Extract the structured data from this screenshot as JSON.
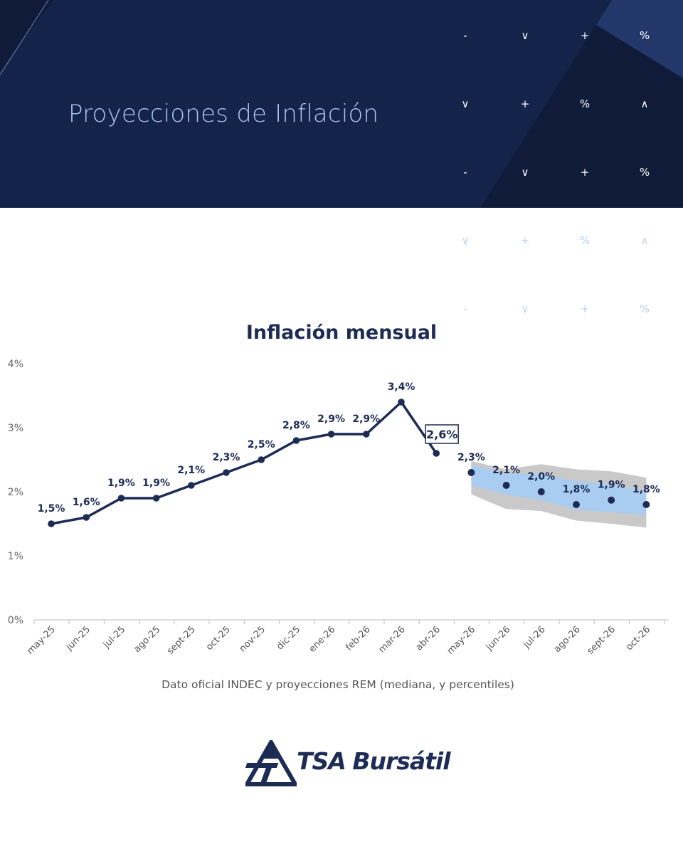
{
  "header": {
    "title": "Proyecciones de Inflación",
    "symbols": [
      [
        "-",
        "∨",
        "+",
        "%"
      ],
      [
        "∨",
        "+",
        "%",
        "∧"
      ],
      [
        "-",
        "∨",
        "+",
        "%"
      ],
      [
        "∨",
        "+",
        "%",
        "∧"
      ],
      [
        "-",
        "∨",
        "+",
        "%"
      ]
    ]
  },
  "chart_data": {
    "type": "line",
    "title": "Inflación mensual",
    "xlabel": "Dato oficial INDEC y proyecciones REM (mediana, y percentiles)",
    "ylabel": "",
    "ylim": [
      0,
      4
    ],
    "yticks": [
      "0%",
      "1%",
      "2%",
      "3%",
      "4%"
    ],
    "grid": false,
    "categories": [
      "may-25",
      "jun-25",
      "jul-25",
      "ago-25",
      "sept-25",
      "oct-25",
      "nov-25",
      "dic-25",
      "ene-26",
      "feb-26",
      "mar-26",
      "abr-26",
      "may-26",
      "jun-26",
      "jul-26",
      "ago-26",
      "sept-26",
      "oct-26"
    ],
    "series": [
      {
        "values": [
          1.5,
          1.6,
          1.9,
          1.9,
          2.1,
          2.3,
          2.5,
          2.8,
          2.9,
          2.9,
          3.4,
          2.6,
          null,
          null,
          null,
          null,
          null,
          null
        ],
        "labels": [
          "1,5%",
          "1,6%",
          "1,9%",
          "1,9%",
          "2,1%",
          "2,3%",
          "2,5%",
          "2,8%",
          "2,9%",
          "2,9%",
          "3,4%",
          "2,6%",
          "",
          "",
          "",
          "",
          "",
          ""
        ]
      },
      {
        "values": [
          null,
          null,
          null,
          null,
          null,
          null,
          null,
          null,
          null,
          null,
          null,
          null,
          2.3,
          2.1,
          2.0,
          1.8,
          1.87,
          1.8
        ],
        "labels": [
          "",
          "",
          "",
          "",
          "",
          "",
          "",
          "",
          "",
          "",
          "",
          "",
          "2,3%",
          "2,1%",
          "2,0%",
          "1,8%",
          "1,9%",
          "1,8%"
        ]
      }
    ],
    "band_inner": {
      "lower": [
        2.1,
        1.96,
        1.87,
        1.72,
        1.68,
        1.64
      ],
      "upper": [
        2.42,
        2.28,
        2.28,
        2.16,
        2.12,
        2.0
      ]
    },
    "band_outer": {
      "lower": [
        1.96,
        1.73,
        1.7,
        1.55,
        1.5,
        1.44
      ],
      "upper": [
        2.48,
        2.35,
        2.43,
        2.35,
        2.32,
        2.22
      ]
    },
    "highlight_label_index": 11,
    "colors": {
      "line": "#1d2c55",
      "band_inner": "#a9cdf1",
      "band_outer": "#c9c9c9"
    }
  },
  "logo": {
    "part1": "TSA",
    "part2": "Bursátil"
  }
}
